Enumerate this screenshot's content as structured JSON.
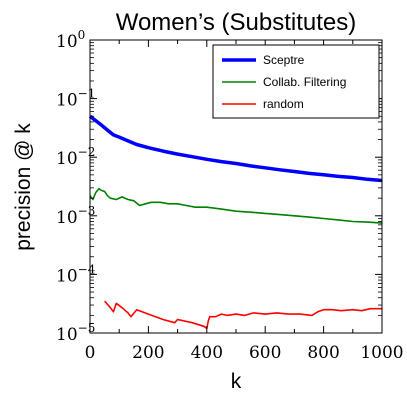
{
  "chart_data": {
    "type": "line",
    "title": "Women’s (Substitutes)",
    "xlabel": "k",
    "ylabel": "precision @ k",
    "xlim": [
      0,
      1000
    ],
    "ylim": [
      1e-05,
      1
    ],
    "yscale": "log",
    "x_ticks": [
      "0",
      "200",
      "400",
      "600",
      "800",
      "1000"
    ],
    "y_ticks": [
      {
        "base": "10",
        "exp": "0"
      },
      {
        "base": "10",
        "exp": "−1"
      },
      {
        "base": "10",
        "exp": "−2"
      },
      {
        "base": "10",
        "exp": "−3"
      },
      {
        "base": "10",
        "exp": "−4"
      },
      {
        "base": "10",
        "exp": "−5"
      }
    ],
    "legend_position": "top-right",
    "series": [
      {
        "name": "Sceptre",
        "color": "#0000ff",
        "linewidth": "thick",
        "points": [
          [
            0,
            0.05
          ],
          [
            20,
            0.042
          ],
          [
            40,
            0.035
          ],
          [
            60,
            0.029
          ],
          [
            80,
            0.024
          ],
          [
            100,
            0.022
          ],
          [
            130,
            0.019
          ],
          [
            160,
            0.0165
          ],
          [
            200,
            0.0145
          ],
          [
            250,
            0.0127
          ],
          [
            300,
            0.0113
          ],
          [
            350,
            0.0102
          ],
          [
            400,
            0.0092
          ],
          [
            450,
            0.0084
          ],
          [
            500,
            0.0078
          ],
          [
            550,
            0.0071
          ],
          [
            600,
            0.0066
          ],
          [
            650,
            0.0061
          ],
          [
            700,
            0.0057
          ],
          [
            750,
            0.0053
          ],
          [
            800,
            0.005
          ],
          [
            850,
            0.0047
          ],
          [
            900,
            0.0045
          ],
          [
            950,
            0.0042
          ],
          [
            1000,
            0.004
          ]
        ]
      },
      {
        "name": "Collab. Filtering",
        "color": "#008000",
        "linewidth": "normal",
        "points": [
          [
            0,
            0.0022
          ],
          [
            10,
            0.0019
          ],
          [
            20,
            0.0025
          ],
          [
            30,
            0.0029
          ],
          [
            40,
            0.0027
          ],
          [
            50,
            0.0026
          ],
          [
            60,
            0.0022
          ],
          [
            70,
            0.002
          ],
          [
            90,
            0.0019
          ],
          [
            110,
            0.0021
          ],
          [
            130,
            0.0019
          ],
          [
            150,
            0.0018
          ],
          [
            170,
            0.0015
          ],
          [
            190,
            0.0016
          ],
          [
            210,
            0.0017
          ],
          [
            240,
            0.0017
          ],
          [
            270,
            0.0016
          ],
          [
            300,
            0.0016
          ],
          [
            330,
            0.0015
          ],
          [
            360,
            0.0014
          ],
          [
            400,
            0.0014
          ],
          [
            450,
            0.0013
          ],
          [
            500,
            0.0012
          ],
          [
            550,
            0.00115
          ],
          [
            600,
            0.0011
          ],
          [
            650,
            0.00105
          ],
          [
            700,
            0.001
          ],
          [
            750,
            0.00095
          ],
          [
            800,
            0.0009
          ],
          [
            850,
            0.00085
          ],
          [
            900,
            0.0008
          ],
          [
            950,
            0.00078
          ],
          [
            1000,
            0.00075
          ]
        ]
      },
      {
        "name": "random",
        "color": "#ff0000",
        "linewidth": "normal",
        "points": [
          [
            50,
            3.5e-05
          ],
          [
            70,
            2.7e-05
          ],
          [
            80,
            2.3e-05
          ],
          [
            90,
            3.2e-05
          ],
          [
            110,
            2.7e-05
          ],
          [
            130,
            2.2e-05
          ],
          [
            140,
            1.9e-05
          ],
          [
            160,
            2.5e-05
          ],
          [
            200,
            2.1e-05
          ],
          [
            250,
            1.7e-05
          ],
          [
            290,
            1.5e-05
          ],
          [
            300,
            1.7e-05
          ],
          [
            350,
            1.5e-05
          ],
          [
            390,
            1.3e-05
          ],
          [
            400,
            1.2e-05
          ],
          [
            405,
            1.6e-05
          ],
          [
            410,
            1.9e-05
          ],
          [
            430,
            1.9e-05
          ],
          [
            450,
            2.1e-05
          ],
          [
            470,
            2e-05
          ],
          [
            500,
            2.1e-05
          ],
          [
            530,
            2e-05
          ],
          [
            560,
            2.2e-05
          ],
          [
            600,
            2.1e-05
          ],
          [
            640,
            2.2e-05
          ],
          [
            680,
            2.1e-05
          ],
          [
            720,
            2.1e-05
          ],
          [
            760,
            2e-05
          ],
          [
            780,
            2.3e-05
          ],
          [
            800,
            2.5e-05
          ],
          [
            830,
            2.5e-05
          ],
          [
            860,
            2.4e-05
          ],
          [
            900,
            2.5e-05
          ],
          [
            930,
            2.4e-05
          ],
          [
            960,
            2.6e-05
          ],
          [
            1000,
            2.6e-05
          ]
        ]
      }
    ]
  }
}
